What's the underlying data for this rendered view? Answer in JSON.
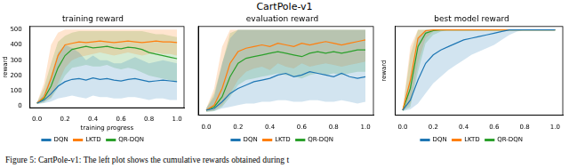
{
  "title": "CartPole-v1",
  "caption": "Figure 5: CartPole-v1: The left plot shows the cumulative rewards obtained during t",
  "chart_data": [
    {
      "type": "line",
      "title": "training reward",
      "xlabel": "training progress",
      "ylabel": "reward",
      "x": [
        0,
        0.05,
        0.1,
        0.15,
        0.2,
        0.25,
        0.3,
        0.35,
        0.4,
        0.45,
        0.5,
        0.55,
        0.6,
        0.65,
        0.7,
        0.75,
        0.8,
        0.85,
        0.9,
        0.95,
        1.0
      ],
      "xlim": [
        -0.05,
        1.05
      ],
      "ylim": [
        -10,
        520
      ],
      "xticks": [
        {
          "value": 0,
          "label": "0.0"
        },
        0.2,
        0.4,
        0.6,
        0.8,
        {
          "value": 1,
          "label": "1.0"
        }
      ],
      "yticks": [
        0,
        100,
        200,
        300,
        400,
        500
      ],
      "grid": false,
      "legend": "bottom",
      "series": [
        {
          "name": "DQN",
          "color": "#1f77b4",
          "values": [
            20,
            40,
            80,
            130,
            160,
            175,
            180,
            170,
            185,
            175,
            180,
            170,
            165,
            175,
            180,
            170,
            160,
            165,
            170,
            165,
            160
          ],
          "lower": [
            15,
            20,
            30,
            50,
            60,
            70,
            60,
            50,
            70,
            60,
            60,
            50,
            50,
            60,
            60,
            50,
            40,
            50,
            50,
            40,
            40
          ],
          "upper": [
            25,
            80,
            200,
            350,
            400,
            380,
            350,
            300,
            330,
            300,
            300,
            280,
            280,
            300,
            320,
            300,
            280,
            290,
            300,
            290,
            280
          ]
        },
        {
          "name": "LKTD",
          "color": "#ff7f0e",
          "values": [
            20,
            60,
            180,
            330,
            400,
            410,
            420,
            415,
            420,
            425,
            420,
            415,
            420,
            425,
            420,
            415,
            420,
            425,
            420,
            420,
            415
          ],
          "lower": [
            15,
            30,
            60,
            150,
            250,
            300,
            320,
            330,
            340,
            350,
            340,
            330,
            340,
            350,
            340,
            330,
            340,
            350,
            340,
            340,
            330
          ],
          "upper": [
            25,
            150,
            400,
            480,
            500,
            500,
            500,
            500,
            500,
            500,
            500,
            500,
            500,
            500,
            500,
            500,
            500,
            500,
            500,
            500,
            500
          ]
        },
        {
          "name": "QR-DQN",
          "color": "#2ca02c",
          "values": [
            20,
            50,
            130,
            250,
            330,
            370,
            380,
            390,
            380,
            385,
            390,
            380,
            375,
            385,
            380,
            370,
            350,
            340,
            330,
            320,
            310
          ],
          "lower": [
            15,
            25,
            50,
            120,
            200,
            250,
            260,
            270,
            260,
            260,
            270,
            250,
            240,
            250,
            240,
            220,
            200,
            190,
            180,
            170,
            160
          ],
          "upper": [
            25,
            120,
            280,
            420,
            460,
            480,
            490,
            490,
            490,
            490,
            490,
            490,
            490,
            490,
            490,
            490,
            480,
            470,
            470,
            460,
            450
          ]
        }
      ]
    },
    {
      "type": "line",
      "title": "evaluation reward",
      "tick_labels": "x",
      "x": [
        0,
        0.05,
        0.1,
        0.15,
        0.2,
        0.25,
        0.3,
        0.35,
        0.4,
        0.45,
        0.5,
        0.55,
        0.6,
        0.65,
        0.7,
        0.75,
        0.8,
        0.85,
        0.9,
        0.95,
        1.0
      ],
      "xlim": [
        -0.05,
        1.05
      ],
      "ylim": [
        -10,
        520
      ],
      "xticks": [
        {
          "value": 0,
          "label": "0.0"
        },
        0.2,
        0.4,
        0.6,
        0.8,
        {
          "value": 1,
          "label": "1.0"
        }
      ],
      "yticks": [
        0,
        100,
        200,
        300,
        400,
        500
      ],
      "grid": false,
      "legend": "bottom",
      "series": [
        {
          "name": "DQN",
          "color": "#1f77b4",
          "values": [
            20,
            30,
            70,
            120,
            150,
            170,
            190,
            200,
            210,
            230,
            240,
            220,
            230,
            250,
            240,
            230,
            220,
            240,
            220,
            210,
            220
          ],
          "lower": [
            10,
            15,
            30,
            40,
            50,
            60,
            60,
            70,
            70,
            80,
            80,
            70,
            70,
            80,
            80,
            70,
            70,
            80,
            70,
            60,
            70
          ],
          "upper": [
            30,
            100,
            300,
            450,
            500,
            500,
            500,
            500,
            500,
            500,
            500,
            500,
            500,
            500,
            500,
            500,
            500,
            500,
            500,
            500,
            500
          ]
        },
        {
          "name": "LKTD",
          "color": "#ff7f0e",
          "values": [
            20,
            50,
            150,
            300,
            370,
            390,
            400,
            410,
            400,
            420,
            410,
            400,
            420,
            410,
            420,
            430,
            420,
            410,
            420,
            430,
            440
          ],
          "lower": [
            10,
            20,
            50,
            120,
            200,
            250,
            270,
            280,
            260,
            300,
            280,
            270,
            300,
            280,
            290,
            300,
            290,
            280,
            290,
            300,
            310
          ],
          "upper": [
            30,
            150,
            400,
            500,
            500,
            500,
            500,
            500,
            500,
            500,
            500,
            500,
            500,
            500,
            500,
            500,
            500,
            500,
            500,
            500,
            500
          ]
        },
        {
          "name": "QR-DQN",
          "color": "#2ca02c",
          "values": [
            20,
            40,
            100,
            220,
            300,
            330,
            340,
            350,
            360,
            370,
            360,
            350,
            340,
            360,
            370,
            360,
            370,
            360,
            370,
            380,
            380
          ],
          "lower": [
            10,
            15,
            40,
            100,
            170,
            200,
            210,
            220,
            230,
            240,
            230,
            220,
            210,
            230,
            240,
            230,
            240,
            230,
            240,
            250,
            250
          ],
          "upper": [
            30,
            120,
            300,
            480,
            500,
            500,
            500,
            500,
            500,
            500,
            500,
            500,
            500,
            500,
            500,
            500,
            500,
            500,
            500,
            500,
            500
          ]
        }
      ]
    },
    {
      "type": "line",
      "title": "best model reward",
      "ylabel": "reward",
      "tick_labels": "x",
      "x": [
        0,
        0.05,
        0.1,
        0.15,
        0.2,
        0.25,
        0.3,
        0.35,
        0.4,
        0.45,
        0.5,
        0.55,
        0.6,
        0.65,
        0.7,
        0.75,
        0.8,
        0.85,
        0.9,
        0.95,
        1.0
      ],
      "xlim": [
        -0.05,
        1.05
      ],
      "ylim": [
        -10,
        520
      ],
      "xticks": [
        {
          "value": 0,
          "label": "0.0"
        },
        0.2,
        0.4,
        0.6,
        0.8,
        {
          "value": 1,
          "label": "1.0"
        }
      ],
      "yticks": [
        0,
        100,
        200,
        300,
        400,
        500
      ],
      "grid": false,
      "legend": "bottom",
      "series": [
        {
          "name": "DQN",
          "color": "#1f77b4",
          "values": [
            20,
            80,
            200,
            300,
            350,
            380,
            400,
            420,
            440,
            450,
            460,
            470,
            480,
            490,
            500,
            500,
            500,
            500,
            500,
            500,
            500
          ],
          "lower": [
            15,
            25,
            60,
            120,
            180,
            220,
            260,
            290,
            320,
            350,
            370,
            390,
            410,
            440,
            470,
            490,
            500,
            500,
            500,
            500,
            500
          ],
          "upper": [
            25,
            200,
            450,
            500,
            500,
            500,
            500,
            500,
            500,
            500,
            500,
            500,
            500,
            500,
            500,
            500,
            500,
            500,
            500,
            500,
            500
          ]
        },
        {
          "name": "LKTD",
          "color": "#ff7f0e",
          "values": [
            20,
            200,
            450,
            495,
            500,
            500,
            500,
            500,
            500,
            500,
            500,
            500,
            500,
            500,
            500,
            500,
            500,
            500,
            500,
            500,
            500
          ],
          "lower": [
            15,
            60,
            300,
            450,
            490,
            500,
            500,
            500,
            500,
            500,
            500,
            500,
            500,
            500,
            500,
            500,
            500,
            500,
            500,
            500,
            500
          ],
          "upper": [
            25,
            400,
            500,
            500,
            500,
            500,
            500,
            500,
            500,
            500,
            500,
            500,
            500,
            500,
            500,
            500,
            500,
            500,
            500,
            500,
            500
          ]
        },
        {
          "name": "QR-DQN",
          "color": "#2ca02c",
          "values": [
            20,
            150,
            400,
            480,
            495,
            500,
            500,
            500,
            500,
            500,
            500,
            500,
            500,
            500,
            500,
            500,
            500,
            500,
            500,
            500,
            500
          ],
          "lower": [
            15,
            40,
            250,
            420,
            470,
            490,
            500,
            500,
            500,
            500,
            500,
            500,
            500,
            500,
            500,
            500,
            500,
            500,
            500,
            500,
            500
          ],
          "upper": [
            25,
            350,
            500,
            500,
            500,
            500,
            500,
            500,
            500,
            500,
            500,
            500,
            500,
            500,
            500,
            500,
            500,
            500,
            500,
            500,
            500
          ]
        }
      ]
    }
  ]
}
